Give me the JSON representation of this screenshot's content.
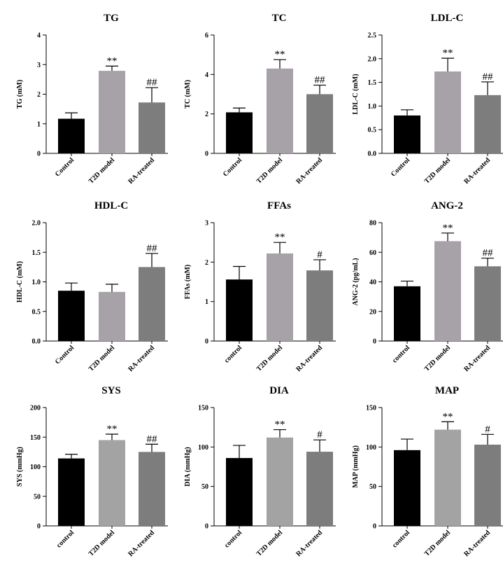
{
  "chart_data": [
    {
      "type": "bar",
      "title": "TG",
      "ylabel": "TG (mM)",
      "categories": [
        "Control",
        "T2D model",
        "RA-treated"
      ],
      "values": [
        1.17,
        2.79,
        1.72
      ],
      "errors": [
        0.2,
        0.16,
        0.5
      ],
      "significance": [
        "",
        "**",
        "##"
      ],
      "colors": [
        "#000000",
        "#a7a2a8",
        "#7d7d7d"
      ],
      "ylim": [
        0,
        4
      ],
      "yticks": [
        "0",
        "1",
        "2",
        "3",
        "4"
      ],
      "grid": false
    },
    {
      "type": "bar",
      "title": "TC",
      "ylabel": "TC (mM)",
      "categories": [
        "Control",
        "T2D model",
        "RA-treated"
      ],
      "values": [
        2.08,
        4.3,
        3.0
      ],
      "errors": [
        0.22,
        0.45,
        0.46
      ],
      "significance": [
        "",
        "**",
        "##"
      ],
      "colors": [
        "#000000",
        "#a7a2a8",
        "#7d7d7d"
      ],
      "ylim": [
        0,
        6
      ],
      "yticks": [
        "0",
        "2",
        "4",
        "6"
      ],
      "grid": false
    },
    {
      "type": "bar",
      "title": "LDL-C",
      "ylabel": "LDL-C (mM)",
      "categories": [
        "Control",
        "T2D model",
        "RA-treated"
      ],
      "values": [
        0.8,
        1.73,
        1.23
      ],
      "errors": [
        0.12,
        0.28,
        0.28
      ],
      "significance": [
        "",
        "**",
        "##"
      ],
      "colors": [
        "#000000",
        "#a7a2a8",
        "#7d7d7d"
      ],
      "ylim": [
        0,
        2.5
      ],
      "yticks": [
        "0.0",
        "0.5",
        "1.0",
        "1.5",
        "2.0",
        "2.5"
      ],
      "grid": false
    },
    {
      "type": "bar",
      "title": "HDL-C",
      "ylabel": "HDL-C (mM)",
      "categories": [
        "Control",
        "T2D model",
        "RA-treated"
      ],
      "values": [
        0.85,
        0.83,
        1.25
      ],
      "errors": [
        0.13,
        0.13,
        0.23
      ],
      "significance": [
        "",
        "",
        "##"
      ],
      "colors": [
        "#000000",
        "#a7a2a8",
        "#7d7d7d"
      ],
      "ylim": [
        0,
        2.0
      ],
      "yticks": [
        "0.0",
        "0.5",
        "1.0",
        "1.5",
        "2.0"
      ],
      "grid": false
    },
    {
      "type": "bar",
      "title": "FFAs",
      "ylabel": "FFAs (mM)",
      "categories": [
        "control",
        "T2D model",
        "RA-treated"
      ],
      "values": [
        1.56,
        2.22,
        1.79
      ],
      "errors": [
        0.33,
        0.28,
        0.27
      ],
      "significance": [
        "",
        "**",
        "#"
      ],
      "colors": [
        "#000000",
        "#a7a2a8",
        "#7d7d7d"
      ],
      "ylim": [
        0,
        3
      ],
      "yticks": [
        "0",
        "1",
        "2",
        "3"
      ],
      "grid": false
    },
    {
      "type": "bar",
      "title": "ANG-2",
      "ylabel": "ANG-2 (pg/mL)",
      "categories": [
        "control",
        "T2D model",
        "RA-treated"
      ],
      "values": [
        37,
        67.5,
        50.5
      ],
      "errors": [
        3.5,
        5.5,
        5.5
      ],
      "significance": [
        "",
        "**",
        "##"
      ],
      "colors": [
        "#000000",
        "#a7a2a8",
        "#7d7d7d"
      ],
      "ylim": [
        0,
        80
      ],
      "yticks": [
        "0",
        "20",
        "40",
        "60",
        "80"
      ],
      "grid": false
    },
    {
      "type": "bar",
      "title": "SYS",
      "ylabel": "SYS (mmHg)",
      "categories": [
        "control",
        "T2D model",
        "RA-treated"
      ],
      "values": [
        114,
        145,
        125
      ],
      "errors": [
        7,
        10,
        13
      ],
      "significance": [
        "",
        "**",
        "##"
      ],
      "colors": [
        "#000000",
        "#a3a3a3",
        "#7d7d7d"
      ],
      "ylim": [
        0,
        200
      ],
      "yticks": [
        "0",
        "50",
        "100",
        "150",
        "200"
      ],
      "grid": false
    },
    {
      "type": "bar",
      "title": "DIA",
      "ylabel": "DIA (mmHg)",
      "categories": [
        "control",
        "T2D model",
        "RA-treated"
      ],
      "values": [
        86,
        112,
        94
      ],
      "errors": [
        16,
        10,
        15
      ],
      "significance": [
        "",
        "**",
        "#"
      ],
      "colors": [
        "#000000",
        "#a3a3a3",
        "#7d7d7d"
      ],
      "ylim": [
        0,
        150
      ],
      "yticks": [
        "0",
        "50",
        "100",
        "150"
      ],
      "grid": false
    },
    {
      "type": "bar",
      "title": "MAP",
      "ylabel": "MAP (mmHg)",
      "categories": [
        "control",
        "T2D model",
        "RA-treated"
      ],
      "values": [
        96,
        122,
        103
      ],
      "errors": [
        14,
        10,
        13
      ],
      "significance": [
        "",
        "**",
        "#"
      ],
      "colors": [
        "#000000",
        "#a3a3a3",
        "#7d7d7d"
      ],
      "ylim": [
        0,
        150
      ],
      "yticks": [
        "0",
        "50",
        "100",
        "150"
      ],
      "grid": false
    }
  ]
}
